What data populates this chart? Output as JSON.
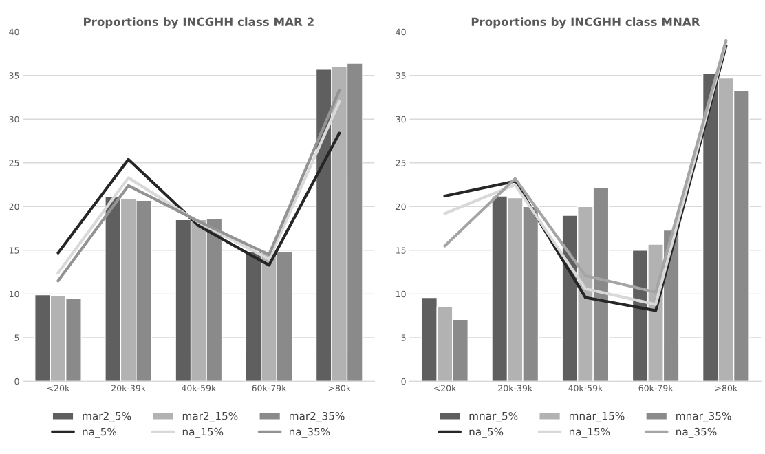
{
  "chart_data": [
    {
      "type": "bar",
      "title": "Proportions by INCGHH class MAR 2",
      "categories": [
        "<20k",
        "20k-39k",
        "40k-59k",
        "60k-79k",
        ">80k"
      ],
      "ylim": [
        0,
        40
      ],
      "yticks": [
        0,
        5,
        10,
        15,
        20,
        25,
        30,
        35,
        40
      ],
      "grid": "y",
      "legend": "bottom",
      "series": [
        {
          "name": "mar2_5%",
          "type": "bar",
          "color": "#5f5f5f",
          "values": [
            9.9,
            21.1,
            18.5,
            14.8,
            35.7
          ]
        },
        {
          "name": "mar2_15%",
          "type": "bar",
          "color": "#b2b2b2",
          "values": [
            9.8,
            20.9,
            18.5,
            14.7,
            36.0
          ]
        },
        {
          "name": "mar2_35%",
          "type": "bar",
          "color": "#8a8a8a",
          "values": [
            9.5,
            20.7,
            18.6,
            14.8,
            36.4
          ]
        },
        {
          "name": "na_5%",
          "type": "line",
          "color": "#262626",
          "values": [
            14.7,
            25.4,
            17.8,
            13.3,
            28.4
          ]
        },
        {
          "name": "na_15%",
          "type": "line",
          "color": "#d9d9d9",
          "values": [
            12.4,
            23.3,
            18.2,
            14.0,
            32.0
          ]
        },
        {
          "name": "na_35%",
          "type": "line",
          "color": "#939393",
          "values": [
            11.5,
            22.4,
            18.3,
            14.5,
            33.3
          ]
        }
      ]
    },
    {
      "type": "bar",
      "title": "Proportions by INCGHH class MNAR",
      "categories": [
        "<20k",
        "20k-39k",
        "40k-59k",
        "60k-79k",
        ">80k"
      ],
      "ylim": [
        0,
        40
      ],
      "yticks": [
        0,
        5,
        10,
        15,
        20,
        25,
        30,
        35,
        40
      ],
      "grid": "y",
      "legend": "bottom",
      "series": [
        {
          "name": "mnar_5%",
          "type": "bar",
          "color": "#5f5f5f",
          "values": [
            9.6,
            21.2,
            19.0,
            15.0,
            35.2
          ]
        },
        {
          "name": "mnar_15%",
          "type": "bar",
          "color": "#b2b2b2",
          "values": [
            8.5,
            21.0,
            20.0,
            15.7,
            34.7
          ]
        },
        {
          "name": "mnar_35%",
          "type": "bar",
          "color": "#8a8a8a",
          "values": [
            7.1,
            20.0,
            22.2,
            17.3,
            33.3
          ]
        },
        {
          "name": "na_5%",
          "type": "line",
          "color": "#262626",
          "values": [
            21.2,
            22.9,
            9.6,
            8.1,
            38.4
          ]
        },
        {
          "name": "na_15%",
          "type": "line",
          "color": "#d9d9d9",
          "values": [
            19.2,
            22.5,
            10.6,
            8.8,
            38.8
          ]
        },
        {
          "name": "na_35%",
          "type": "line",
          "color": "#a5a5a5",
          "values": [
            15.5,
            23.2,
            12.1,
            10.2,
            39.0
          ]
        }
      ]
    }
  ]
}
